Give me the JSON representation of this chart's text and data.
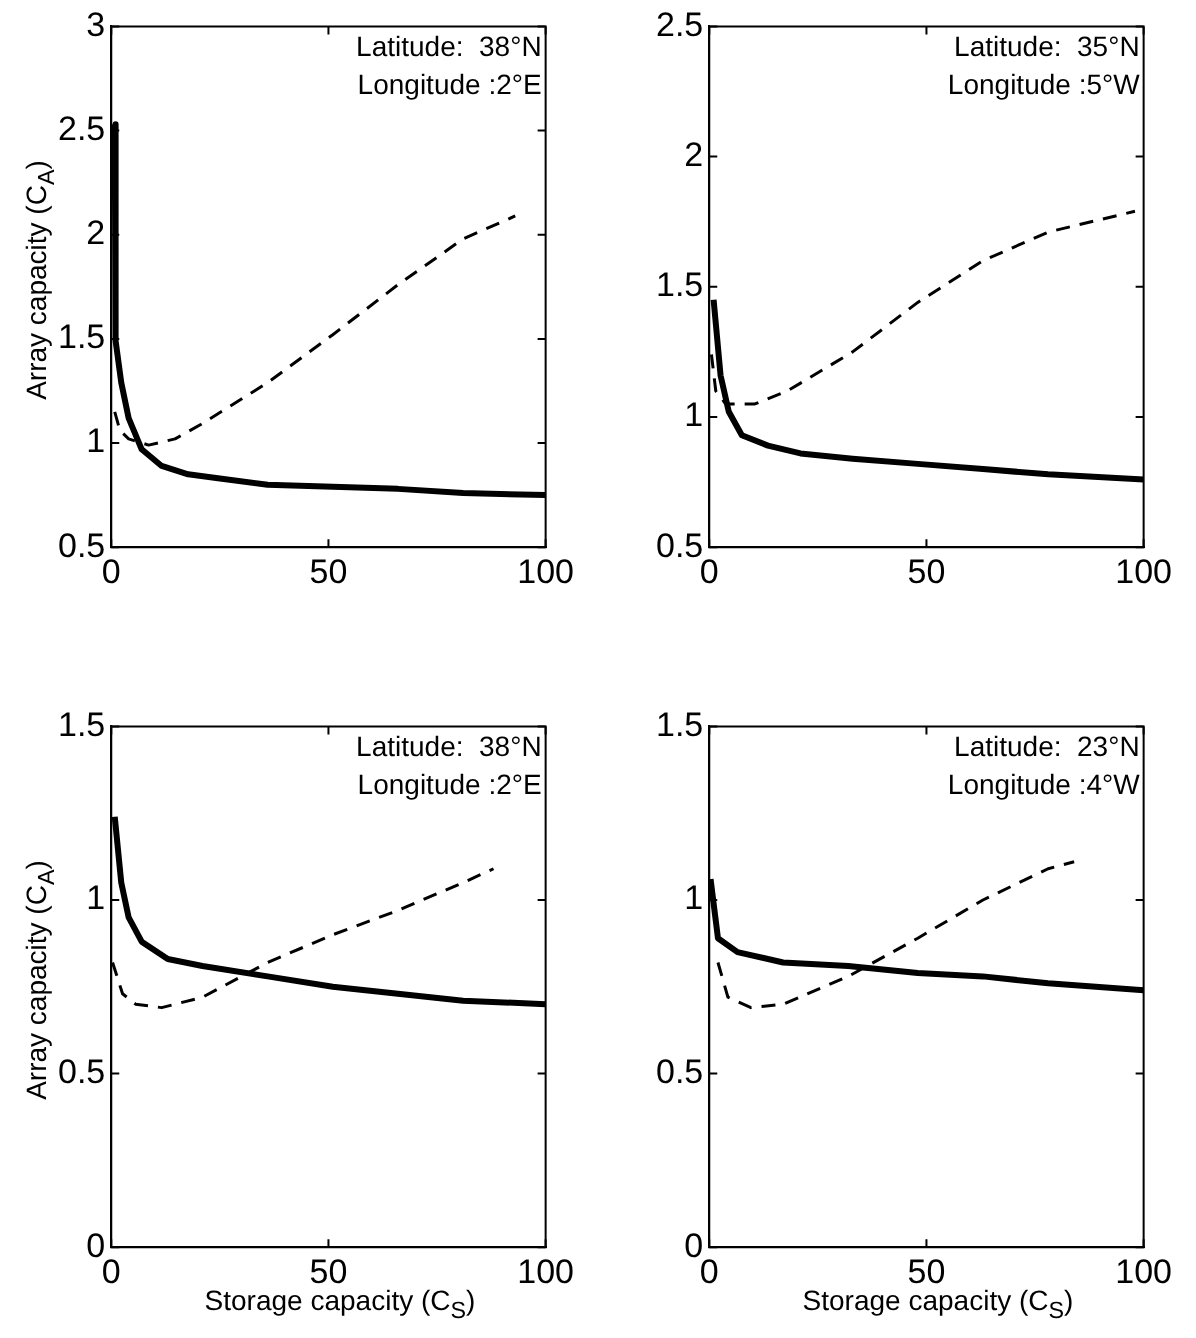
{
  "chart_data": [
    {
      "type": "line",
      "ylabel": "Array capacity (C$_{A}$)",
      "xlim": [
        0,
        100
      ],
      "xticks": [
        0,
        50,
        100
      ],
      "ylim": [
        0.5,
        3
      ],
      "yticks": [
        0.5,
        1,
        1.5,
        2,
        2.5,
        3
      ],
      "grid": false,
      "legend": false,
      "annotations": [
        "Latitude:  38°N",
        "Longitude :2°E"
      ],
      "series": [
        {
          "color": "#000000",
          "line_style": "solid",
          "x": [
            0.8,
            1,
            2.3,
            4,
            7,
            11.6,
            17.7,
            25,
            36,
            51,
            66,
            81,
            100
          ],
          "values": [
            2.53,
            1.49,
            1.29,
            1.12,
            0.97,
            0.89,
            0.85,
            0.83,
            0.8,
            0.79,
            0.78,
            0.76,
            0.75
          ]
        },
        {
          "color": "#000000",
          "line_style": "dashed",
          "x": [
            0.8,
            2,
            4,
            8.6,
            14.7,
            20.7,
            36,
            51,
            66,
            81,
            93
          ],
          "values": [
            1.15,
            1.06,
            1.02,
            0.99,
            1.02,
            1.09,
            1.29,
            1.52,
            1.76,
            1.98,
            2.09
          ]
        }
      ]
    },
    {
      "type": "line",
      "xlim": [
        0,
        100
      ],
      "xticks": [
        0,
        50,
        100
      ],
      "ylim": [
        0.5,
        2.5
      ],
      "yticks": [
        0.5,
        1,
        1.5,
        2,
        2.5
      ],
      "grid": false,
      "legend": false,
      "annotations": [
        "Latitude:  35°N",
        "Longitude :5°W"
      ],
      "series": [
        {
          "color": "#000000",
          "line_style": "solid",
          "x": [
            1,
            2.6,
            4.5,
            7.5,
            13.5,
            21,
            33,
            48,
            63,
            78,
            100
          ],
          "values": [
            1.45,
            1.16,
            1.02,
            0.93,
            0.89,
            0.86,
            0.84,
            0.82,
            0.8,
            0.78,
            0.76
          ]
        },
        {
          "color": "#000000",
          "line_style": "dashed",
          "x": [
            0.5,
            1.5,
            3.8,
            10.5,
            18,
            33,
            48,
            63,
            78,
            98
          ],
          "values": [
            1.24,
            1.1,
            1.05,
            1.05,
            1.1,
            1.25,
            1.44,
            1.6,
            1.71,
            1.79
          ]
        }
      ]
    },
    {
      "type": "line",
      "xlabel": "Storage capacity (C$_{S}$)",
      "ylabel": "Array capacity (C$_{A}$)",
      "xlim": [
        0,
        100
      ],
      "xticks": [
        0,
        50,
        100
      ],
      "ylim": [
        0,
        1.5
      ],
      "yticks": [
        0,
        0.5,
        1,
        1.5
      ],
      "grid": false,
      "legend": false,
      "annotations": [
        "Latitude:  38°N",
        "Longitude :2°E"
      ],
      "series": [
        {
          "color": "#000000",
          "line_style": "solid",
          "x": [
            0.8,
            2.3,
            4,
            7,
            13,
            21,
            36,
            51,
            66,
            81,
            100
          ],
          "values": [
            1.24,
            1.05,
            0.95,
            0.88,
            0.83,
            0.81,
            0.78,
            0.75,
            0.73,
            0.71,
            0.7
          ]
        },
        {
          "color": "#000000",
          "line_style": "dashed",
          "x": [
            0.3,
            2.6,
            5.6,
            11.6,
            21,
            36,
            51,
            66,
            81,
            88
          ],
          "values": [
            0.82,
            0.73,
            0.7,
            0.69,
            0.72,
            0.82,
            0.9,
            0.97,
            1.05,
            1.09
          ]
        }
      ]
    },
    {
      "type": "line",
      "xlabel": "Storage capacity (C$_{S}$)",
      "xlim": [
        0,
        100
      ],
      "xticks": [
        0,
        50,
        100
      ],
      "ylim": [
        0,
        1.5
      ],
      "yticks": [
        0,
        0.5,
        1,
        1.5
      ],
      "grid": false,
      "legend": false,
      "annotations": [
        "Latitude:  23°N",
        "Longitude :4°W"
      ],
      "series": [
        {
          "color": "#000000",
          "line_style": "solid",
          "x": [
            0.3,
            2,
            6.5,
            17,
            32,
            48,
            63,
            78,
            100
          ],
          "values": [
            1.06,
            0.89,
            0.85,
            0.82,
            0.81,
            0.79,
            0.78,
            0.76,
            0.74
          ]
        },
        {
          "color": "#000000",
          "line_style": "dashed",
          "x": [
            2,
            4.3,
            9.6,
            17,
            32,
            48,
            63,
            78,
            84
          ],
          "values": [
            0.82,
            0.72,
            0.69,
            0.7,
            0.78,
            0.89,
            1.0,
            1.09,
            1.11
          ]
        }
      ]
    }
  ]
}
